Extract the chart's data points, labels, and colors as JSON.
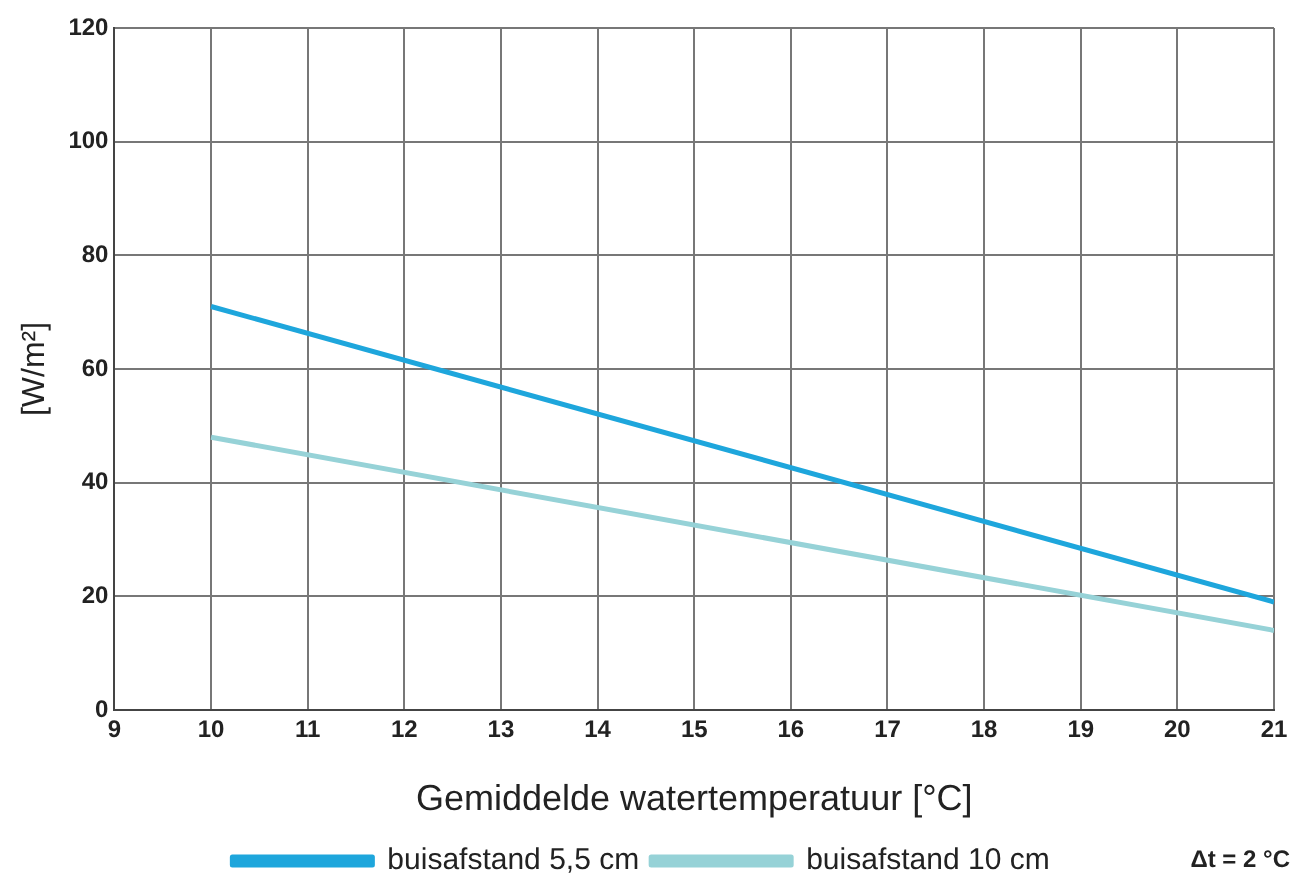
{
  "chart_data": {
    "type": "line",
    "xlabel": "Gemiddelde watertemperatuur [°C]",
    "ylabel": "[W/m²]",
    "x": [
      10,
      21
    ],
    "series": [
      {
        "name": "buisafstand 5,5 cm",
        "color": "#1ea6dc",
        "values": [
          71,
          19
        ]
      },
      {
        "name": "buisafstand 10 cm",
        "color": "#96d2d7",
        "values": [
          48,
          14
        ]
      }
    ],
    "xlim": [
      9,
      21
    ],
    "xticks": [
      9,
      10,
      11,
      12,
      13,
      14,
      15,
      16,
      17,
      18,
      19,
      20,
      21
    ],
    "ylim": [
      0,
      120
    ],
    "yticks": [
      0,
      20,
      40,
      60,
      80,
      100,
      120
    ],
    "grid": true,
    "legend": "bottom",
    "marker": "none",
    "line_style": "solid",
    "annotations": [
      "Δt = 2 °C"
    ]
  }
}
